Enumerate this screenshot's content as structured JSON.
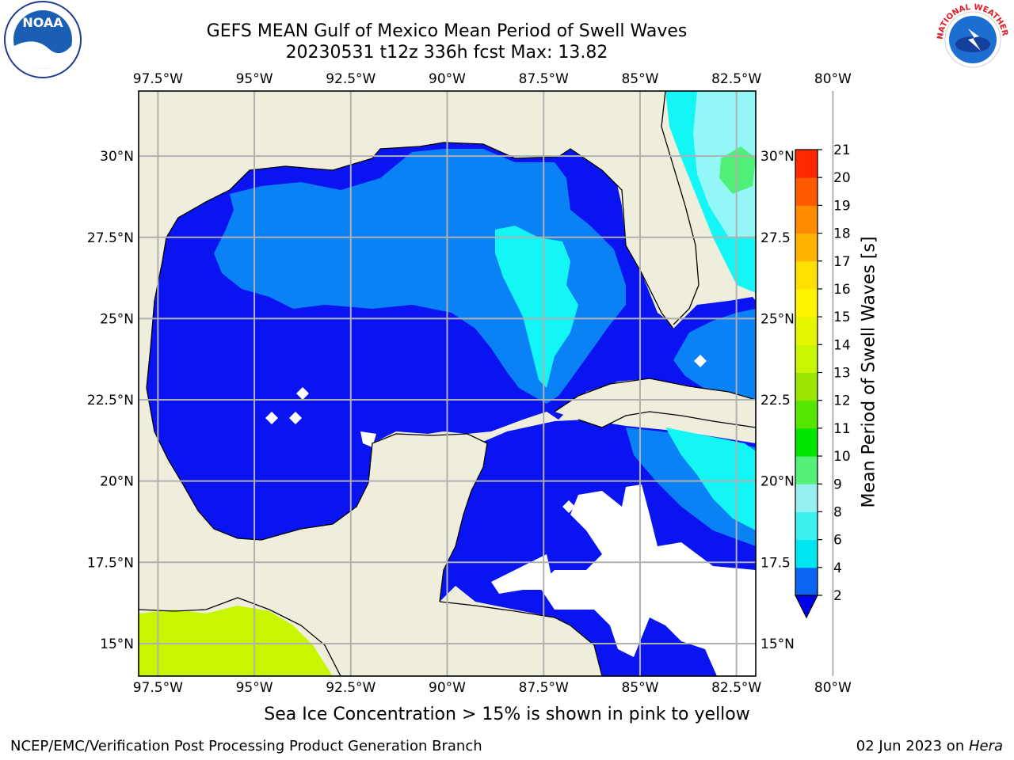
{
  "title": {
    "line1": "GEFS MEAN Gulf of Mexico Mean Period of Swell Waves",
    "line2": "20230531 t12z 336h fcst   Max: 13.82"
  },
  "map": {
    "lon_range": [
      -98,
      -82
    ],
    "lat_range": [
      14,
      32
    ],
    "lon_ticks": [
      "97.5°W",
      "95°W",
      "92.5°W",
      "90°W",
      "87.5°W",
      "85°W",
      "82.5°W",
      "80°W"
    ],
    "lat_ticks": [
      "30°N",
      "27.5°N",
      "25°N",
      "22.5°N",
      "20°N",
      "17.5°N",
      "15°N"
    ],
    "lat_ticks_right": [
      "30°N",
      "27.5",
      "25°N",
      "22.5",
      "20°N",
      "17.5",
      "15°N"
    ],
    "colors": {
      "land": "#efeedc",
      "ocean_2_4": "#0a14f0",
      "ocean_4_6": "#0a82f5",
      "ocean_6_8": "#14f5f5",
      "ocean_8_9": "#93f7f7",
      "ocean_9_10": "#50f078",
      "ice_yellow": "#c8f500",
      "gridline": "#b0b0b0"
    }
  },
  "colorbar": {
    "label": "Mean Period of Swell Waves [s]",
    "ticks": [
      "2",
      "4",
      "6",
      "8",
      "9",
      "10",
      "11",
      "12",
      "13",
      "14",
      "15",
      "16",
      "17",
      "18",
      "19",
      "20",
      "21"
    ],
    "colors": [
      "#0a64f0",
      "#00e6f0",
      "#3cf0f0",
      "#96f0f0",
      "#55f078",
      "#00e600",
      "#55e600",
      "#9be600",
      "#c8f500",
      "#e6f500",
      "#fff500",
      "#ffe100",
      "#ffb400",
      "#ff8c00",
      "#ff5a00",
      "#ff2800",
      "#ff0000"
    ],
    "extend_color": "#0000f0"
  },
  "note": "Sea Ice Concentration > 15% is shown in pink to yellow",
  "footer": {
    "left": "NCEP/EMC/Verification Post Processing Product Generation Branch",
    "right_date": "02 Jun 2023 on ",
    "right_host": "Hera"
  },
  "logos": {
    "noaa_text": "NOAA",
    "nws_text": "NATIONAL WEATHER SERVICE"
  }
}
